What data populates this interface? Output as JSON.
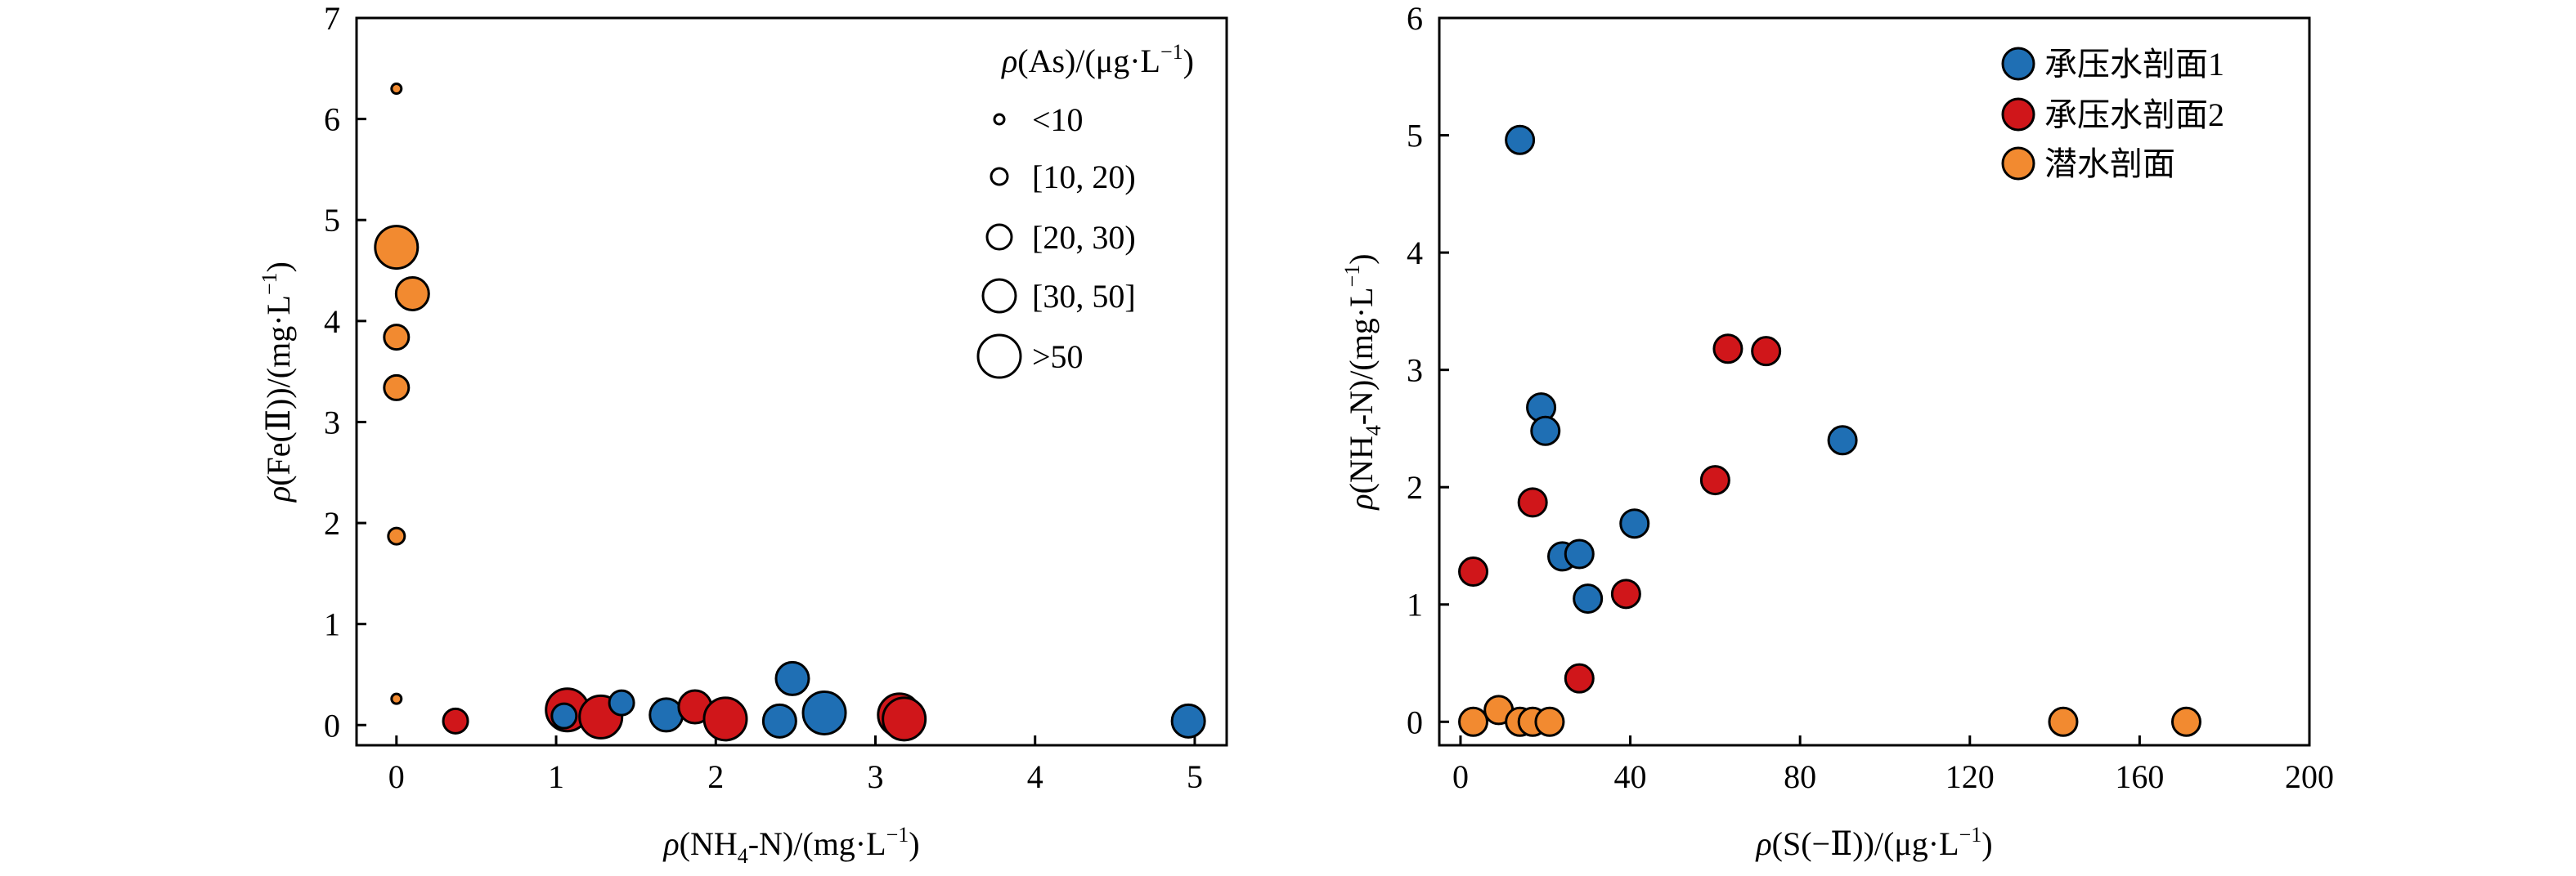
{
  "colors": {
    "confined1": "#1f6fb4",
    "confined2": "#d0161a",
    "phreatic": "#f28a30",
    "axis": "#000000"
  },
  "chart_data": [
    {
      "type": "scatter",
      "xlabel": {
        "pre": "ρ(NH",
        "sub": "4",
        "mid": "-N)/(mg·L",
        "sup": "−1",
        "post": ")"
      },
      "ylabel": {
        "pre": "ρ(Fe(Ⅱ))/(mg·L",
        "sup": "−1",
        "post": ")"
      },
      "xlim": [
        -0.25,
        5.2
      ],
      "ylim": [
        -0.2,
        7
      ],
      "xticks": [
        0,
        1,
        2,
        3,
        4,
        5
      ],
      "yticks": [
        0,
        1,
        2,
        3,
        4,
        5,
        6,
        7
      ],
      "size_legend": {
        "title": {
          "pre": "ρ(As)/(μg·L",
          "sup": "−1",
          "post": ")"
        },
        "items": [
          {
            "label": "<10",
            "size_class": 1
          },
          {
            "label": "[10, 20)",
            "size_class": 2
          },
          {
            "label": "[20, 30)",
            "size_class": 3
          },
          {
            "label": "[30, 50]",
            "size_class": 4
          },
          {
            "label": ">50",
            "size_class": 5
          }
        ]
      },
      "points": [
        {
          "x": 0.0,
          "y": 6.3,
          "size_class": 1,
          "series": "phreatic"
        },
        {
          "x": 0.0,
          "y": 4.73,
          "size_class": 5,
          "series": "phreatic"
        },
        {
          "x": 0.1,
          "y": 4.27,
          "size_class": 4,
          "series": "phreatic"
        },
        {
          "x": 0.0,
          "y": 3.84,
          "size_class": 3,
          "series": "phreatic"
        },
        {
          "x": 0.0,
          "y": 3.34,
          "size_class": 3,
          "series": "phreatic"
        },
        {
          "x": 0.0,
          "y": 1.87,
          "size_class": 2,
          "series": "phreatic"
        },
        {
          "x": 0.0,
          "y": 0.26,
          "size_class": 1,
          "series": "phreatic"
        },
        {
          "x": 0.37,
          "y": 0.04,
          "size_class": 3,
          "series": "confined2"
        },
        {
          "x": 1.07,
          "y": 0.15,
          "size_class": 5,
          "series": "confined2"
        },
        {
          "x": 1.05,
          "y": 0.09,
          "size_class": 3,
          "series": "confined1"
        },
        {
          "x": 1.28,
          "y": 0.08,
          "size_class": 5,
          "series": "confined2"
        },
        {
          "x": 1.41,
          "y": 0.22,
          "size_class": 3,
          "series": "confined1"
        },
        {
          "x": 1.69,
          "y": 0.1,
          "size_class": 4,
          "series": "confined1"
        },
        {
          "x": 1.87,
          "y": 0.18,
          "size_class": 4,
          "series": "confined2"
        },
        {
          "x": 2.06,
          "y": 0.06,
          "size_class": 5,
          "series": "confined2"
        },
        {
          "x": 2.4,
          "y": 0.04,
          "size_class": 4,
          "series": "confined1"
        },
        {
          "x": 2.48,
          "y": 0.46,
          "size_class": 4,
          "series": "confined1"
        },
        {
          "x": 2.68,
          "y": 0.12,
          "size_class": 5,
          "series": "confined1"
        },
        {
          "x": 3.15,
          "y": 0.1,
          "size_class": 5,
          "series": "confined2"
        },
        {
          "x": 3.18,
          "y": 0.06,
          "size_class": 5,
          "series": "confined2"
        },
        {
          "x": 4.96,
          "y": 0.04,
          "size_class": 4,
          "series": "confined1"
        }
      ]
    },
    {
      "type": "scatter",
      "xlabel": {
        "pre": "ρ(S(−Ⅱ))/(μg·L",
        "sup": "−1",
        "post": ")"
      },
      "ylabel": {
        "pre": "ρ(NH",
        "sub": "4",
        "mid": "-N)/(mg·L",
        "sup": "−1",
        "post": ")"
      },
      "xlim": [
        -5,
        200
      ],
      "ylim": [
        -0.2,
        6
      ],
      "xticks": [
        0,
        40,
        80,
        120,
        160,
        200
      ],
      "yticks": [
        0,
        1,
        2,
        3,
        4,
        5,
        6
      ],
      "legend": {
        "position": "top-right"
      },
      "series": [
        {
          "key": "confined1",
          "name": "承压水剖面1",
          "points": [
            [
              14,
              4.96
            ],
            [
              19,
              2.68
            ],
            [
              20,
              2.48
            ],
            [
              24,
              1.41
            ],
            [
              28,
              1.43
            ],
            [
              30,
              1.05
            ],
            [
              41,
              1.69
            ],
            [
              90,
              2.4
            ]
          ]
        },
        {
          "key": "confined2",
          "name": "承压水剖面2",
          "points": [
            [
              3,
              1.28
            ],
            [
              17,
              1.87
            ],
            [
              28,
              0.37
            ],
            [
              39,
              1.09
            ],
            [
              60,
              2.06
            ],
            [
              63,
              3.18
            ],
            [
              72,
              3.16
            ]
          ]
        },
        {
          "key": "phreatic",
          "name": "潜水剖面",
          "points": [
            [
              3,
              0.0
            ],
            [
              9,
              0.1
            ],
            [
              14,
              0.0
            ],
            [
              17,
              0.0
            ],
            [
              21,
              0.0
            ],
            [
              142,
              0.0
            ],
            [
              171,
              0.0
            ]
          ]
        }
      ]
    }
  ]
}
